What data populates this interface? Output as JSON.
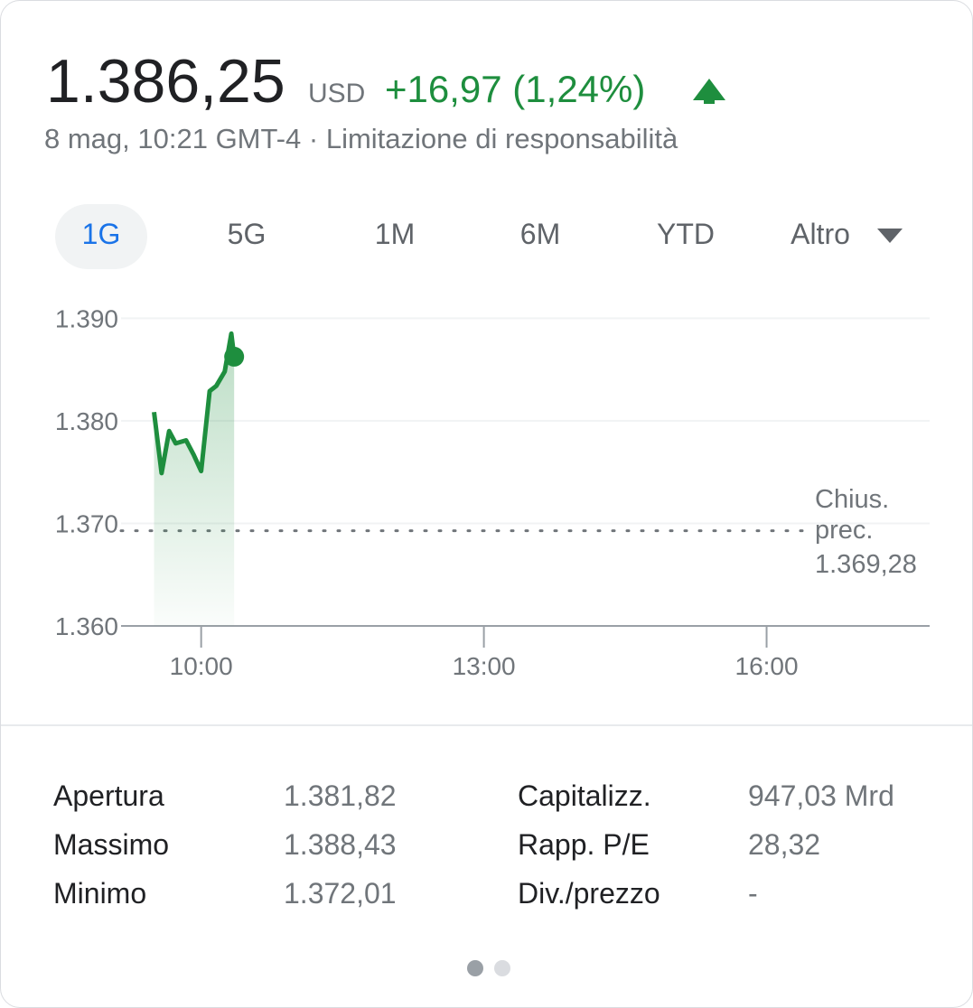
{
  "header": {
    "price": "1.386,25",
    "currency": "USD",
    "change": "+16,97 (1,24%)",
    "timestamp": "8 mag, 10:21 GMT-4 · Limitazione di responsabilità"
  },
  "tabs": [
    "1G",
    "5G",
    "1M",
    "6M",
    "YTD",
    "Altro"
  ],
  "chart_data": {
    "type": "line",
    "x": [
      9.5,
      9.58,
      9.66,
      9.73,
      9.84,
      9.92,
      10,
      10.09,
      10.16,
      10.25,
      10.32,
      10.35
    ],
    "series": [
      {
        "color": "#1e8e3e",
        "values": [
          1380.85,
          1374.9,
          1379,
          1377.8,
          1378.1,
          1376.7,
          1375.1,
          1382.9,
          1383.4,
          1384.8,
          1388.5,
          1386.25
        ]
      }
    ],
    "xlim": [
      9.15,
      17.73
    ],
    "xticks": [
      {
        "value": 10,
        "label": "10:00"
      },
      {
        "value": 13,
        "label": "13:00"
      },
      {
        "value": 16,
        "label": "16:00"
      }
    ],
    "ylim": [
      1360,
      1391
    ],
    "yticks": [
      {
        "value": 1360,
        "label": "1.360"
      },
      {
        "value": 1370,
        "label": "1.370"
      },
      {
        "value": 1380,
        "label": "1.380"
      },
      {
        "value": 1390,
        "label": "1.390"
      }
    ],
    "grid": true,
    "reference_line": {
      "value": 1369.28,
      "label": "Chius. prec.",
      "value_label": "1.369,28"
    }
  },
  "stats": {
    "rows": [
      [
        "Apertura",
        "1.381,82",
        "Capitalizz.",
        "947,03 Mrd"
      ],
      [
        "Massimo",
        "1.388,43",
        "Rapp. P/E",
        "28,32"
      ],
      [
        "Minimo",
        "1.372,01",
        "Div./prezzo",
        "-"
      ]
    ]
  }
}
